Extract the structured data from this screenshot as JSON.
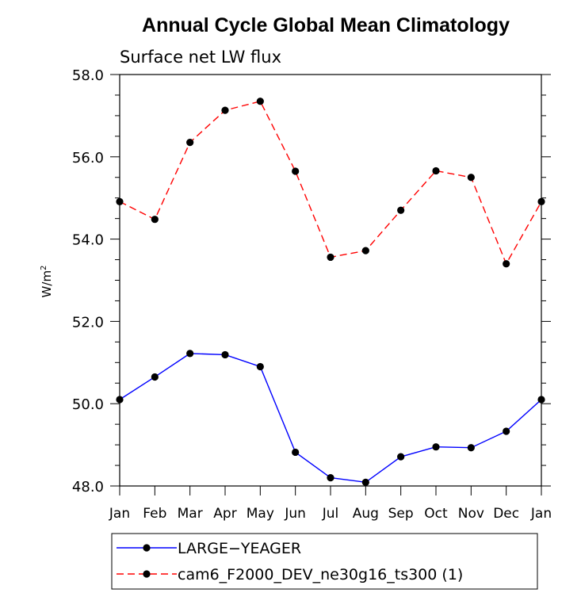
{
  "chart_data": {
    "type": "line",
    "title": "Annual Cycle Global Mean Climatology",
    "subtitle": "Surface net LW flux",
    "ylabel": "W/m",
    "ylabel_sup": "2",
    "xlabel": "",
    "categories": [
      "Jan",
      "Feb",
      "Mar",
      "Apr",
      "May",
      "Jun",
      "Jul",
      "Aug",
      "Sep",
      "Oct",
      "Nov",
      "Dec",
      "Jan"
    ],
    "ylim": [
      48.0,
      58.0
    ],
    "yticks": [
      "48.0",
      "50.0",
      "52.0",
      "54.0",
      "56.0",
      "58.0"
    ],
    "series": [
      {
        "name": "LARGE−YEAGER",
        "color": "#0000ff",
        "dash": "solid",
        "marker": "filled-circle",
        "values": [
          50.1,
          50.65,
          51.22,
          51.19,
          50.9,
          48.82,
          48.2,
          48.09,
          48.71,
          48.95,
          48.93,
          49.33,
          50.1
        ]
      },
      {
        "name": "cam6_F2000_DEV_ne30g16_ts300 (1)",
        "color": "#ff0000",
        "dash": "dashed",
        "marker": "filled-circle",
        "values": [
          54.91,
          54.48,
          56.35,
          57.13,
          57.35,
          55.65,
          53.56,
          53.72,
          54.7,
          55.66,
          55.5,
          53.4,
          54.91
        ]
      }
    ],
    "legend_position": "bottom"
  }
}
